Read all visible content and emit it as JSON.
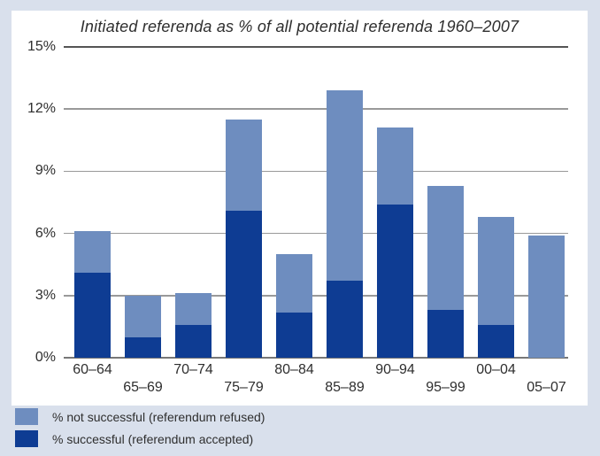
{
  "colors": {
    "background": "#d9e0ec",
    "panel": "#ffffff",
    "successful": "#0e3c93",
    "not_successful": "#6e8dbf",
    "gridline": "#999999",
    "gridline_top": "#555555",
    "baseline": "#777777",
    "text": "#2e2e2e"
  },
  "chart_data": {
    "type": "bar",
    "stacked": true,
    "title": "Initiated referenda as % of all potential referenda 1960–2007",
    "categories": [
      "60–64",
      "65–69",
      "70–74",
      "75–79",
      "80–84",
      "85–89",
      "90–94",
      "95–99",
      "00–04",
      "05–07"
    ],
    "series": [
      {
        "name": "% successful (referendum accepted)",
        "color_key": "successful",
        "values": [
          4.1,
          1.0,
          1.6,
          7.1,
          2.2,
          3.7,
          7.4,
          2.3,
          1.6,
          0
        ]
      },
      {
        "name": "% not successful (referendum refused)",
        "color_key": "not_successful",
        "values": [
          2.0,
          2.0,
          1.5,
          4.4,
          2.8,
          9.2,
          3.7,
          6.0,
          5.2,
          5.9
        ]
      }
    ],
    "totals": [
      6.1,
      3.0,
      3.1,
      11.5,
      5.0,
      12.9,
      11.1,
      8.3,
      6.8,
      5.9
    ],
    "y_ticks": [
      "15%",
      "12%",
      "9%",
      "6%",
      "3%",
      "0%"
    ],
    "y_tick_values": [
      15,
      12,
      9,
      6,
      3,
      0
    ],
    "ylim": [
      0,
      15
    ],
    "grid": true,
    "legend_position": "bottom-left"
  },
  "legend": {
    "items": [
      {
        "label": "% not successful (referendum refused)",
        "color_key": "not_successful"
      },
      {
        "label": "% successful (referendum accepted)",
        "color_key": "successful"
      }
    ]
  }
}
